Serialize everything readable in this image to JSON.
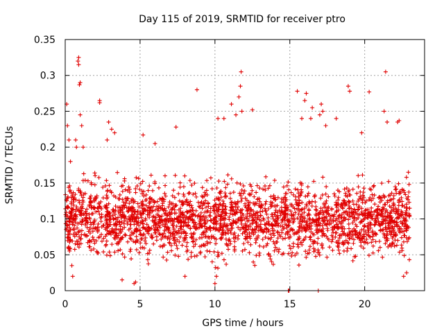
{
  "chart_data": {
    "type": "scatter",
    "title": "Day 115 of 2019, SRMTID for receiver ptro",
    "xlabel": "GPS time / hours",
    "ylabel": "SRMTID / TECUs",
    "xlim": [
      0,
      24
    ],
    "ylim": [
      0,
      0.35
    ],
    "x_ticks": [
      0,
      5,
      10,
      15,
      20
    ],
    "x_tick_labels": [
      "0",
      "5",
      "10",
      "15",
      "20"
    ],
    "y_ticks": [
      0,
      0.05,
      0.1,
      0.15,
      0.2,
      0.25,
      0.3,
      0.35
    ],
    "y_tick_labels": [
      "0",
      "0.05",
      "0.1",
      "0.15",
      "0.2",
      "0.25",
      "0.3",
      "0.35"
    ],
    "grid": true,
    "marker": "+",
    "color": "#e00000",
    "series": [
      {
        "name": "SRMTID",
        "description_of_distribution": "dense cloud of ~2500 points over 0-23 h, mostly 0.02-0.2 TECU",
        "data_range_x": [
          0,
          23
        ],
        "points": [
          [
            0.1,
            0.26
          ],
          [
            0.15,
            0.23
          ],
          [
            0.25,
            0.21
          ],
          [
            0.35,
            0.18
          ],
          [
            0.4,
            0.13
          ],
          [
            0.5,
            0.02
          ],
          [
            0.7,
            0.21
          ],
          [
            0.75,
            0.2
          ],
          [
            0.85,
            0.32
          ],
          [
            0.9,
            0.325
          ],
          [
            0.9,
            0.315
          ],
          [
            0.95,
            0.287
          ],
          [
            1.0,
            0.29
          ],
          [
            1.0,
            0.245
          ],
          [
            1.1,
            0.23
          ],
          [
            1.2,
            0.2
          ],
          [
            2.3,
            0.265
          ],
          [
            2.3,
            0.262
          ],
          [
            2.8,
            0.21
          ],
          [
            2.9,
            0.235
          ],
          [
            3.1,
            0.225
          ],
          [
            3.3,
            0.22
          ],
          [
            5.2,
            0.217
          ],
          [
            6.0,
            0.205
          ],
          [
            7.4,
            0.228
          ],
          [
            8.8,
            0.28
          ],
          [
            10.2,
            0.24
          ],
          [
            10.6,
            0.24
          ],
          [
            11.1,
            0.26
          ],
          [
            11.4,
            0.245
          ],
          [
            11.6,
            0.27
          ],
          [
            11.7,
            0.285
          ],
          [
            11.75,
            0.305
          ],
          [
            11.8,
            0.25
          ],
          [
            12.5,
            0.252
          ],
          [
            14.9,
            0.0
          ],
          [
            14.95,
            0.0
          ],
          [
            15.5,
            0.278
          ],
          [
            15.8,
            0.24
          ],
          [
            16.0,
            0.265
          ],
          [
            16.1,
            0.275
          ],
          [
            16.4,
            0.24
          ],
          [
            16.5,
            0.255
          ],
          [
            17.0,
            0.245
          ],
          [
            17.1,
            0.26
          ],
          [
            17.2,
            0.25
          ],
          [
            17.4,
            0.23
          ],
          [
            18.1,
            0.24
          ],
          [
            18.9,
            0.285
          ],
          [
            19.0,
            0.278
          ],
          [
            19.8,
            0.22
          ],
          [
            20.3,
            0.277
          ],
          [
            21.3,
            0.25
          ],
          [
            21.4,
            0.305
          ],
          [
            21.5,
            0.235
          ],
          [
            22.2,
            0.235
          ],
          [
            22.3,
            0.237
          ],
          [
            16.9,
            0.0
          ],
          [
            4.6,
            0.01
          ],
          [
            4.7,
            0.012
          ],
          [
            10.0,
            0.01
          ],
          [
            10.1,
            0.02
          ],
          [
            3.8,
            0.015
          ],
          [
            8.0,
            0.02
          ],
          [
            22.6,
            0.02
          ],
          [
            22.8,
            0.025
          ]
        ]
      }
    ],
    "cloud": {
      "n": 2500,
      "x_range": [
        0,
        23
      ],
      "typical_mean": 0.1,
      "typical_spread": 0.045,
      "y_min": 0.005,
      "y_max": 0.205
    }
  }
}
